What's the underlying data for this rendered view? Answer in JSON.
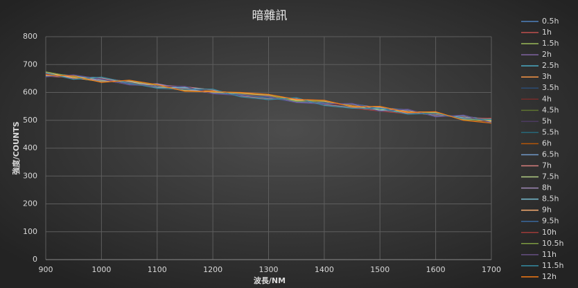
{
  "chart_data": {
    "type": "line",
    "title": "暗雜訊",
    "x_label": "波長/NM",
    "y_label": "強度/COUNTS",
    "x": [
      900,
      950,
      1000,
      1050,
      1100,
      1150,
      1200,
      1250,
      1300,
      1350,
      1400,
      1450,
      1500,
      1550,
      1600,
      1650,
      1700
    ],
    "xlim": [
      900,
      1700
    ],
    "xticks": [
      900,
      1000,
      1100,
      1200,
      1300,
      1400,
      1500,
      1600,
      1700
    ],
    "ylim": [
      0,
      800
    ],
    "yticks": [
      0,
      100,
      200,
      300,
      400,
      500,
      600,
      700,
      800
    ],
    "grid": true,
    "legend": "right",
    "series": [
      {
        "name": "0.5h",
        "color": "#4f81bd",
        "values": [
          668,
          652,
          648,
          632,
          627,
          611,
          606,
          590,
          585,
          570,
          565,
          549,
          544,
          528,
          524,
          507,
          503
        ]
      },
      {
        "name": "1h",
        "color": "#c0504d",
        "values": [
          662,
          658,
          643,
          638,
          621,
          617,
          600,
          596,
          580,
          575,
          559,
          555,
          538,
          534,
          518,
          513,
          497
        ]
      },
      {
        "name": "1.5h",
        "color": "#9bbb59",
        "values": [
          670,
          654,
          650,
          631,
          626,
          615,
          601,
          594,
          586,
          569,
          564,
          553,
          540,
          532,
          523,
          508,
          502
        ]
      },
      {
        "name": "2h",
        "color": "#8064a2",
        "values": [
          660,
          657,
          641,
          637,
          622,
          612,
          605,
          591,
          581,
          574,
          560,
          550,
          543,
          529,
          519,
          512,
          495
        ]
      },
      {
        "name": "2.5h",
        "color": "#4bacc6",
        "values": [
          667,
          651,
          646,
          634,
          628,
          610,
          604,
          595,
          584,
          571,
          566,
          551,
          539,
          533,
          525,
          506,
          504
        ]
      },
      {
        "name": "3h",
        "color": "#f79646",
        "values": [
          664,
          659,
          644,
          639,
          620,
          616,
          602,
          592,
          587,
          573,
          561,
          556,
          542,
          530,
          517,
          514,
          498
        ]
      },
      {
        "name": "3.5h",
        "color": "#2c4d75",
        "values": [
          671,
          653,
          649,
          633,
          625,
          613,
          607,
          589,
          582,
          568,
          563,
          548,
          545,
          535,
          522,
          509,
          501
        ]
      },
      {
        "name": "4h",
        "color": "#772c2a",
        "values": [
          659,
          656,
          642,
          636,
          623,
          618,
          599,
          597,
          579,
          576,
          558,
          554,
          537,
          527,
          520,
          511,
          496
        ]
      },
      {
        "name": "4.5h",
        "color": "#5f7530",
        "values": [
          666,
          650,
          647,
          630,
          629,
          609,
          603,
          593,
          588,
          572,
          567,
          552,
          541,
          531,
          526,
          505,
          505
        ]
      },
      {
        "name": "5h",
        "color": "#4d3b62",
        "values": [
          663,
          660,
          640,
          640,
          619,
          614,
          608,
          588,
          583,
          567,
          562,
          557,
          536,
          536,
          516,
          515,
          499
        ]
      },
      {
        "name": "5.5h",
        "color": "#276a7c",
        "values": [
          669,
          655,
          651,
          635,
          624,
          619,
          600,
          594,
          578,
          577,
          557,
          547,
          546,
          526,
          521,
          510,
          502
        ]
      },
      {
        "name": "6h",
        "color": "#b65708",
        "values": [
          661,
          652,
          645,
          629,
          630,
          608,
          606,
          596,
          589,
          570,
          568,
          553,
          540,
          532,
          527,
          504,
          494
        ]
      },
      {
        "name": "6.5h",
        "color": "#729aca",
        "values": [
          672,
          658,
          639,
          641,
          618,
          615,
          598,
          590,
          584,
          566,
          561,
          558,
          535,
          537,
          515,
          516,
          500
        ]
      },
      {
        "name": "7h",
        "color": "#d9807e",
        "values": [
          658,
          654,
          652,
          632,
          627,
          620,
          609,
          587,
          577,
          578,
          556,
          546,
          547,
          525,
          522,
          507,
          506
        ]
      },
      {
        "name": "7.5h",
        "color": "#b3cd84",
        "values": [
          665,
          661,
          643,
          638,
          621,
          607,
          601,
          597,
          590,
          571,
          569,
          551,
          539,
          530,
          528,
          503,
          497
        ]
      },
      {
        "name": "8h",
        "color": "#a18ab8",
        "values": [
          668,
          649,
          646,
          628,
          631,
          612,
          597,
          592,
          583,
          565,
          560,
          559,
          544,
          538,
          514,
          517,
          493
        ]
      },
      {
        "name": "8.5h",
        "color": "#79c0d4",
        "values": [
          660,
          657,
          653,
          637,
          617,
          617,
          610,
          586,
          576,
          579,
          555,
          545,
          534,
          524,
          523,
          509,
          507
        ]
      },
      {
        "name": "9h",
        "color": "#f9ae72",
        "values": [
          673,
          653,
          638,
          642,
          625,
          606,
          604,
          598,
          591,
          573,
          570,
          550,
          548,
          531,
          529,
          502,
          499
        ]
      },
      {
        "name": "9.5h",
        "color": "#3a679c",
        "values": [
          657,
          662,
          647,
          631,
          622,
          621,
          596,
          591,
          582,
          564,
          559,
          560,
          541,
          539,
          513,
          518,
          492
        ]
      },
      {
        "name": "10h",
        "color": "#9f3b38",
        "values": [
          666,
          648,
          654,
          636,
          616,
          613,
          611,
          585,
          575,
          580,
          554,
          544,
          533,
          523,
          524,
          506,
          508
        ]
      },
      {
        "name": "10.5h",
        "color": "#7e9c41",
        "values": [
          674,
          656,
          637,
          643,
          626,
          605,
          603,
          599,
          592,
          568,
          571,
          549,
          549,
          529,
          530,
          501,
          501
        ]
      },
      {
        "name": "11h",
        "color": "#664f83",
        "values": [
          656,
          663,
          648,
          627,
          623,
          622,
          595,
          589,
          586,
          563,
          558,
          561,
          532,
          540,
          512,
          519,
          491
        ]
      },
      {
        "name": "11.5h",
        "color": "#358da5",
        "values": [
          670,
          647,
          655,
          634,
          615,
          611,
          612,
          584,
          574,
          581,
          553,
          543,
          543,
          522,
          525,
          505,
          503
        ]
      },
      {
        "name": "12h",
        "color": "#f57a14",
        "values": [
          662,
          659,
          636,
          644,
          628,
          604,
          602,
          600,
          593,
          575,
          572,
          548,
          550,
          528,
          531,
          500,
          490
        ]
      }
    ]
  }
}
